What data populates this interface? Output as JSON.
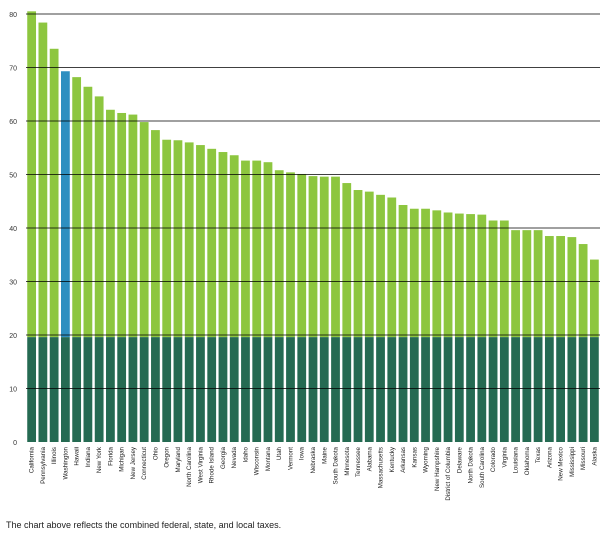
{
  "chart_data": {
    "type": "bar",
    "ylim": [
      0,
      80
    ],
    "yticks": [
      "0",
      "10",
      "20",
      "30",
      "40",
      "50",
      "60",
      "70",
      "80"
    ],
    "grid": true,
    "base_level": 19.6,
    "colors": {
      "bar": "#8dc63f",
      "bar_highlight": "#2e8fc0",
      "base": "#256a52",
      "grid": "#000000"
    },
    "highlight_category": "Washington",
    "categories": [
      "California",
      "Pennsylvania",
      "Illinois",
      "Washington",
      "Hawaii",
      "Indiana",
      "New York",
      "Florida",
      "Michigan",
      "New Jersey",
      "Connecticut",
      "Ohio",
      "Oregon",
      "Maryland",
      "North Carolina",
      "West Virginia",
      "Rhode Island",
      "Georgia",
      "Nevada",
      "Idaho",
      "Wisconsin",
      "Montana",
      "Utah",
      "Vermont",
      "Iowa",
      "Nebraska",
      "Maine",
      "South Dakota",
      "Minnesota",
      "Tennessee",
      "Alabama",
      "Massachusetts",
      "Kentucky",
      "Arkansas",
      "Kansas",
      "Wyoming",
      "New Hampshire",
      "District of Columbia",
      "Delaware",
      "North Dakota",
      "South Carolina",
      "Colorado",
      "Virginia",
      "Louisiana",
      "Oklahoma",
      "Texas",
      "Arizona",
      "New Mexico",
      "Mississippi",
      "Missouri",
      "Alaska"
    ],
    "values": [
      80.5,
      78.4,
      73.5,
      69.3,
      68.2,
      66.4,
      64.6,
      62.1,
      61.5,
      61.2,
      59.8,
      58.3,
      56.5,
      56.4,
      56.0,
      55.5,
      54.8,
      54.2,
      53.6,
      52.6,
      52.6,
      52.3,
      50.8,
      50.4,
      50.1,
      49.7,
      49.6,
      49.6,
      48.4,
      47.1,
      46.8,
      46.2,
      45.7,
      44.3,
      43.6,
      43.6,
      43.3,
      42.9,
      42.7,
      42.6,
      42.5,
      41.4,
      41.4,
      39.6,
      39.6,
      39.6,
      38.5,
      38.5,
      38.3,
      37.0,
      34.1
    ]
  },
  "footnote": "The chart above reflects the combined federal, state, and local taxes."
}
